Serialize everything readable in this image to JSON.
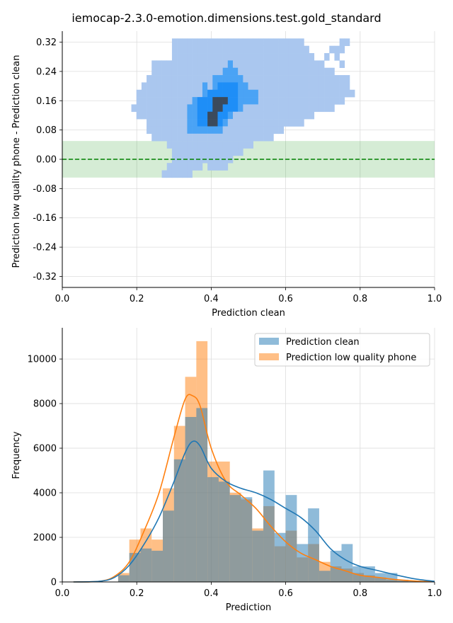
{
  "figure": {
    "title": "iemocap-2.3.0-emotion.dimensions.test.gold_standard"
  },
  "colors": {
    "clean": "#1f77b4",
    "low_quality": "#ff7f0e",
    "heat_light": "#aac7ef",
    "heat_mid": "#4aa3f5",
    "heat_strong": "#1e8ef7",
    "heat_dark": "#3b4a5c",
    "band": "#2ca02c",
    "zero_line": "#008000",
    "overlap": "#8f9ea3"
  },
  "chart_data": [
    {
      "type": "heatmap",
      "xlabel": "Prediction clean",
      "ylabel": "Prediction low quality phone - Prediction clean",
      "xlim": [
        0.0,
        1.0
      ],
      "ylim": [
        -0.35,
        0.35
      ],
      "xticks": [
        "0.0",
        "0.2",
        "0.4",
        "0.6",
        "0.8",
        "1.0"
      ],
      "yticks": [
        "-0.32",
        "-0.24",
        "-0.16",
        "-0.08",
        "0.00",
        "0.08",
        "0.16",
        "0.24",
        "0.32"
      ],
      "ytick_values": [
        -0.32,
        -0.24,
        -0.16,
        -0.08,
        0.0,
        0.08,
        0.16,
        0.24,
        0.32
      ],
      "grid": true,
      "reference_line_y": 0.0,
      "tolerance_band": [
        -0.05,
        0.05
      ],
      "bin_width_x": 0.03,
      "bin_height_y": 0.02,
      "x_bin_start": 0.09,
      "y_bin_start": -0.35,
      "density_rows": [
        "...........................................................",
        "...............11111111111111111111111111.......11..........",
        "...............111111111111111111111111111....111..........",
        "...............1111111111111111111111111111..1.1...........",
        "...........1111111111111112111111111111111111...1..........",
        "...........111111111111112221111111111111111111............",
        "..........1111111111111222222111111111111111111111.........",
        ".........11111111111121233332211111111111111111111.........",
        "........1111111111111233333322221111111111111111111........",
        "........11111111111233344433222211111111111111111..........",
        ".......1111111111122333443332111111111111111111............",
        "........11111111112233443321111111111111111................",
        "..........1111111122334432111111111111111..................",
        "..........111111112222222111111111111......................",
        "...........111111111111111111111111........................",
        "..............11111111111111111............................",
        "...............11111111111111..............................",
        "...............111111111111................................",
        "..............1111111.1111.................................",
        ".............111111.........................................",
        "..........................................................."
      ]
    },
    {
      "type": "bar",
      "xlabel": "Prediction",
      "ylabel": "Frequency",
      "xlim": [
        0.0,
        1.0
      ],
      "ylim": [
        0,
        11400
      ],
      "xticks": [
        "0.0",
        "0.2",
        "0.4",
        "0.6",
        "0.8",
        "1.0"
      ],
      "yticks": [
        "0",
        "2000",
        "4000",
        "6000",
        "8000",
        "10000"
      ],
      "ytick_values": [
        0,
        2000,
        4000,
        6000,
        8000,
        10000
      ],
      "grid": true,
      "legend_position": "top-right",
      "bin_edges": [
        0.15,
        0.18,
        0.21,
        0.24,
        0.27,
        0.3,
        0.33,
        0.36,
        0.39,
        0.42,
        0.45,
        0.48,
        0.51,
        0.54,
        0.57,
        0.6,
        0.63,
        0.66,
        0.69,
        0.72,
        0.75,
        0.78,
        0.81,
        0.84,
        0.87,
        0.9,
        0.93,
        0.96,
        0.99
      ],
      "series": [
        {
          "name": "Prediction clean",
          "values": [
            300,
            1300,
            1500,
            1400,
            3200,
            5500,
            7400,
            7800,
            4700,
            4500,
            3900,
            3800,
            2300,
            5000,
            2200,
            3900,
            1700,
            3300,
            500,
            1400,
            1700,
            700,
            700,
            400,
            400,
            100,
            50,
            20
          ]
        },
        {
          "name": "Prediction low quality phone",
          "values": [
            400,
            1900,
            2400,
            1900,
            4200,
            7000,
            9200,
            10800,
            5400,
            5400,
            4000,
            3700,
            2400,
            3400,
            1600,
            2300,
            1100,
            1700,
            900,
            700,
            600,
            400,
            300,
            200,
            100,
            50,
            20,
            10
          ]
        }
      ],
      "kde": {
        "x": [
          0.03,
          0.1,
          0.14,
          0.18,
          0.22,
          0.26,
          0.3,
          0.33,
          0.35,
          0.37,
          0.4,
          0.44,
          0.48,
          0.52,
          0.56,
          0.6,
          0.64,
          0.68,
          0.72,
          0.76,
          0.8,
          0.85,
          0.9,
          0.95,
          1.0
        ],
        "clean": [
          0,
          30,
          200,
          750,
          1700,
          2900,
          4500,
          5800,
          6300,
          6100,
          5100,
          4500,
          4200,
          4000,
          3700,
          3300,
          2900,
          2300,
          1500,
          1000,
          700,
          500,
          300,
          130,
          30
        ],
        "low_quality": [
          0,
          30,
          250,
          900,
          2300,
          4000,
          6500,
          8200,
          8350,
          7900,
          6000,
          4500,
          3900,
          3300,
          2500,
          1800,
          1300,
          1000,
          700,
          500,
          300,
          200,
          100,
          40,
          10
        ]
      }
    }
  ]
}
